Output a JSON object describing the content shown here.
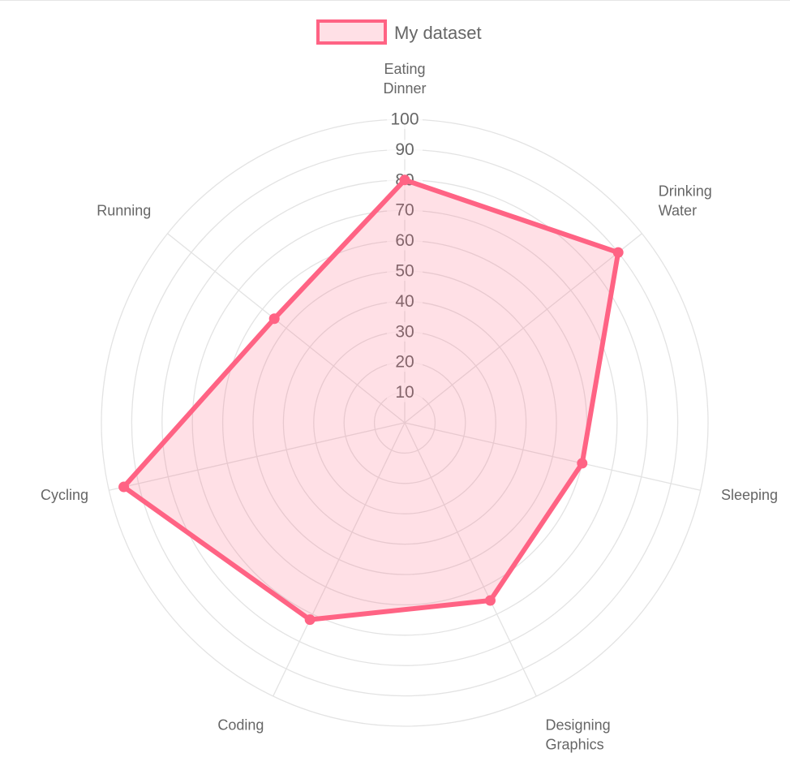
{
  "chart_data": {
    "type": "radar",
    "labels": [
      [
        "Eating",
        "Dinner"
      ],
      [
        "Drinking",
        "Water"
      ],
      [
        "Sleeping"
      ],
      [
        "Designing",
        "Graphics"
      ],
      [
        "Coding"
      ],
      [
        "Cycling"
      ],
      [
        "Running"
      ]
    ],
    "series": [
      {
        "name": "My dataset",
        "values": [
          80,
          90,
          60,
          65,
          72,
          95,
          55
        ],
        "border_color": "#ff6384",
        "fill_color": "rgba(255, 99, 132, 0.2)"
      }
    ],
    "r_range": [
      0,
      100
    ],
    "r_ticks": [
      10,
      20,
      30,
      40,
      50,
      60,
      70,
      80,
      90,
      100
    ],
    "grid": true,
    "legend_position": "top"
  }
}
